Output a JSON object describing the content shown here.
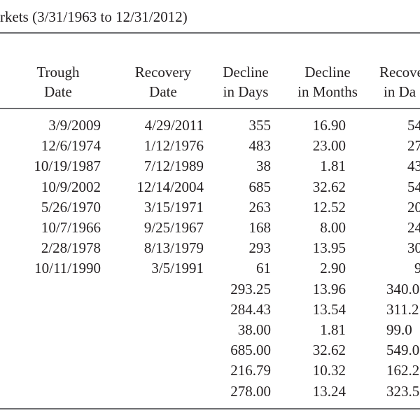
{
  "title": "rkets (3/31/1963 to 12/31/2012)",
  "headers": [
    {
      "line1": "Trough",
      "line2": "Date"
    },
    {
      "line1": "Recovery",
      "line2": "Date"
    },
    {
      "line1": "Decline",
      "line2": "in Days"
    },
    {
      "line1": "Decline",
      "line2": "in Months"
    },
    {
      "line1": "Recove",
      "line2": "in Da"
    }
  ],
  "rows": [
    [
      "3/9/2009",
      "4/29/2011",
      "355",
      "16.90",
      "54"
    ],
    [
      "12/6/1974",
      "1/12/1976",
      "483",
      "23.00",
      "27"
    ],
    [
      "10/19/1987",
      "7/12/1989",
      "38",
      "1.81",
      "43"
    ],
    [
      "10/9/2002",
      "12/14/2004",
      "685",
      "32.62",
      "54"
    ],
    [
      "5/26/1970",
      "3/15/1971",
      "263",
      "12.52",
      "20"
    ],
    [
      "10/7/1966",
      "9/25/1967",
      "168",
      "8.00",
      "24"
    ],
    [
      "2/28/1978",
      "8/13/1979",
      "293",
      "13.95",
      "30"
    ],
    [
      "10/11/1990",
      "3/5/1991",
      "61",
      "2.90",
      "9"
    ],
    [
      "",
      "",
      "293.25",
      "13.96",
      "340.0"
    ],
    [
      "",
      "",
      "284.43",
      "13.54",
      "311.2"
    ],
    [
      "",
      "",
      "38.00",
      "1.81",
      "99.0"
    ],
    [
      "",
      "",
      "685.00",
      "32.62",
      "549.0"
    ],
    [
      "",
      "",
      "216.79",
      "10.32",
      "162.2"
    ],
    [
      "",
      "",
      "278.00",
      "13.24",
      "323.5"
    ]
  ]
}
